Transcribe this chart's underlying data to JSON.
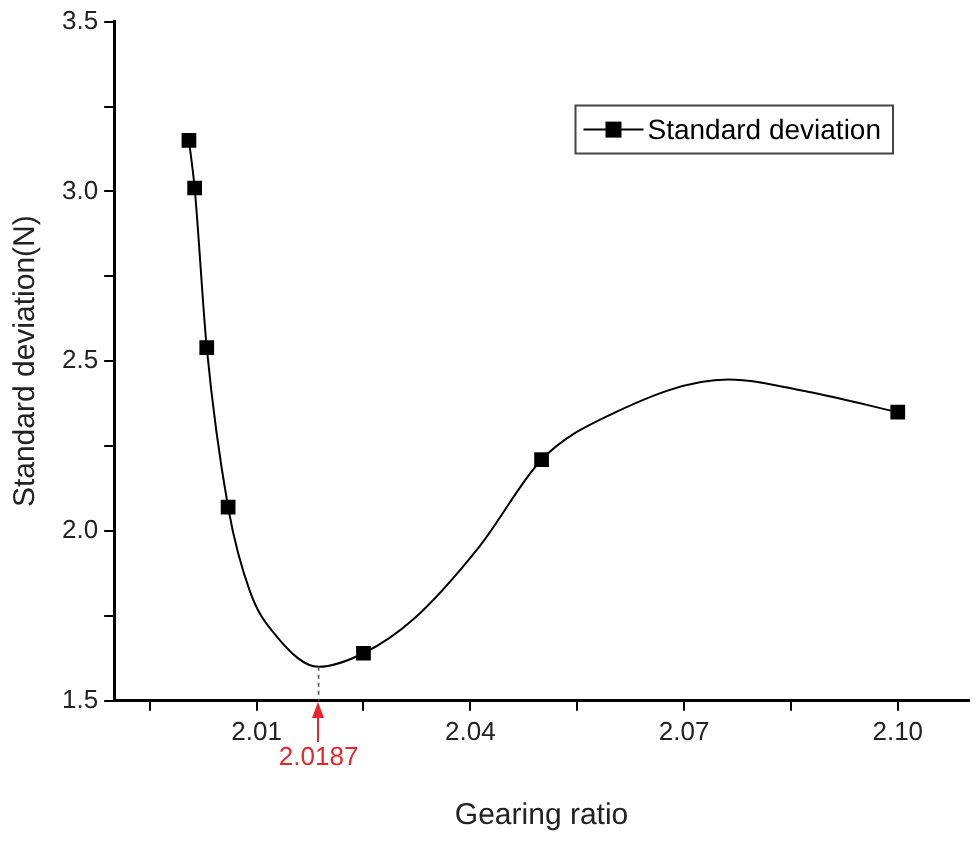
{
  "chart_data": {
    "type": "scatter",
    "xlabel": "Gearing ratio",
    "ylabel": "Standard deviation(N)",
    "series": [
      {
        "name": "Standard deviation",
        "type": "scatter",
        "color": "#000000",
        "marker": "square",
        "x": [
          2.0005,
          2.0013,
          2.003,
          2.006,
          2.025,
          2.05,
          2.1
        ],
        "values": [
          3.15,
          3.01,
          2.54,
          2.07,
          1.64,
          2.21,
          2.35
        ]
      },
      {
        "type": "line",
        "color": "#000000",
        "marker": "none",
        "x": [
          2.0005,
          2.0013,
          2.003,
          2.006,
          2.0091,
          2.0128,
          2.0187,
          2.025,
          2.032,
          2.0413,
          2.05,
          2.0594,
          2.0762,
          2.0874,
          2.1
        ],
        "values": [
          3.15,
          3.01,
          2.54,
          2.07,
          1.82,
          1.69,
          1.6,
          1.64,
          1.74,
          1.955,
          2.21,
          2.34,
          2.446,
          2.41,
          2.35
        ]
      }
    ],
    "annotations": [
      {
        "text": "2.0187",
        "x": 2.0187,
        "y": 1.6
      }
    ],
    "xlim": [
      1.99,
      2.11
    ],
    "xticks": [
      {
        "value": 1.995,
        "label": null
      },
      2.01,
      {
        "value": 2.025,
        "label": null
      },
      2.04,
      {
        "value": 2.055,
        "label": null
      },
      2.07,
      {
        "value": 2.085,
        "label": null
      },
      {
        "value": 2.1,
        "label": "2.10"
      }
    ],
    "ylim": [
      1.5,
      3.5
    ],
    "yticks": [
      1.5,
      {
        "value": 1.75,
        "label": null
      },
      {
        "value": 2,
        "label": "2.0"
      },
      {
        "value": 2.25,
        "label": null
      },
      2.5,
      {
        "value": 2.75,
        "label": null
      },
      {
        "value": 3,
        "label": "3.0"
      },
      {
        "value": 3.25,
        "label": null
      },
      3.5
    ],
    "grid": false,
    "legend": "top right"
  }
}
